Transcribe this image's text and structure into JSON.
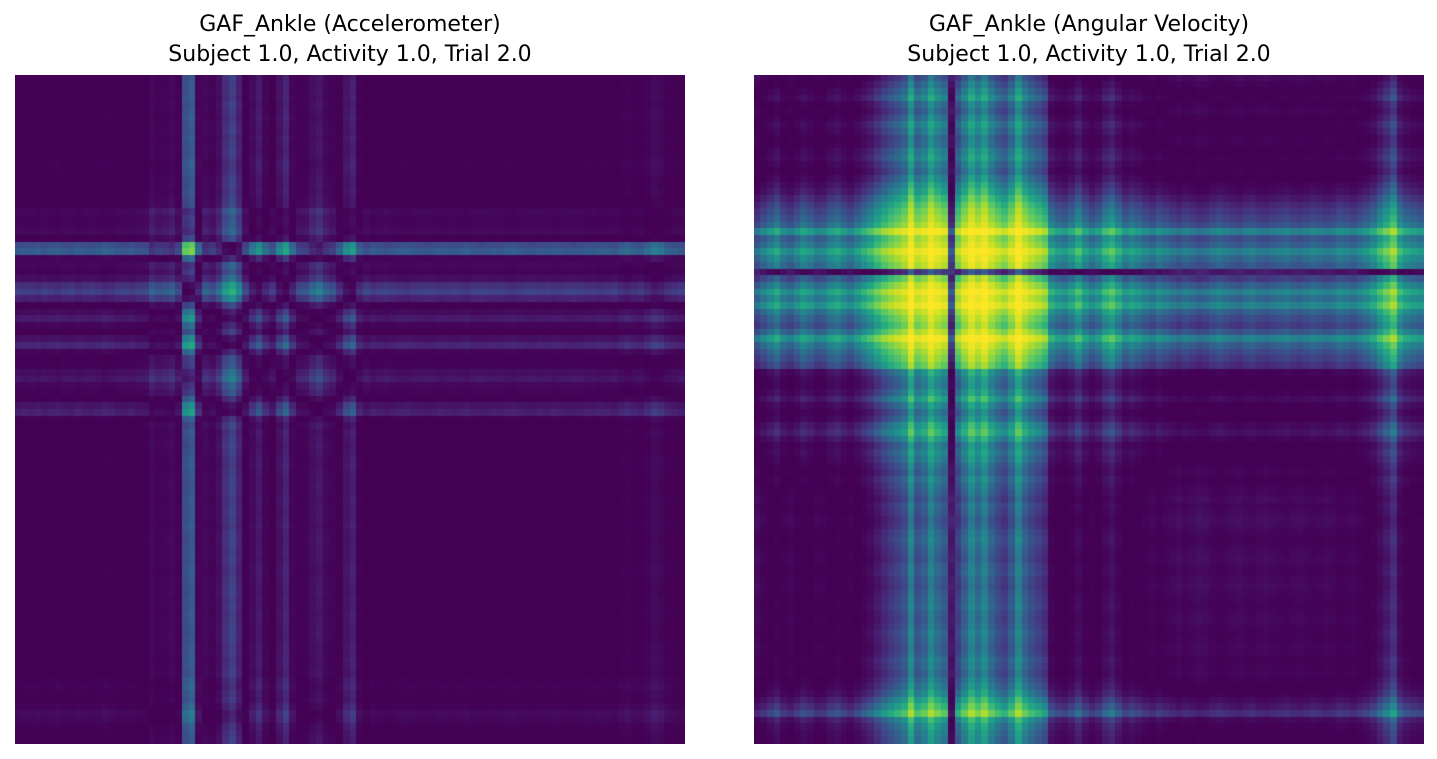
{
  "figure": {
    "panels": [
      {
        "title_line1": "GAF_Ankle (Accelerometer)",
        "title_line2": "Subject 1.0, Activity 1.0, Trial 2.0"
      },
      {
        "title_line1": "GAF_Ankle (Angular Velocity)",
        "title_line2": "Subject 1.0, Activity 1.0, Trial 2.0"
      }
    ]
  },
  "chart_data": [
    {
      "type": "heatmap",
      "title": "GAF_Ankle (Accelerometer)\nSubject 1.0, Activity 1.0, Trial 2.0",
      "colormap": "viridis",
      "axes_visible": false,
      "grid": false,
      "matrix_size": 100,
      "series": [
        {
          "values": [
            0.5,
            0.52,
            0.51,
            0.53,
            0.5,
            0.52,
            0.54,
            0.51,
            0.5,
            0.53,
            0.51,
            0.5,
            0.52,
            0.55,
            0.53,
            0.5,
            0.49,
            0.51,
            0.48,
            0.47,
            0.35,
            0.4,
            0.38,
            0.34,
            0.45,
            0.92,
            0.95,
            0.6,
            0.35,
            0.4,
            0.3,
            0.15,
            0.1,
            0.2,
            0.45,
            0.65,
            0.75,
            0.6,
            0.5,
            0.7,
            0.8,
            0.6,
            0.42,
            0.4,
            0.3,
            0.25,
            0.35,
            0.4,
            0.55,
            0.72,
            0.78,
            0.55,
            0.47,
            0.52,
            0.5,
            0.48,
            0.5,
            0.52,
            0.53,
            0.51,
            0.5,
            0.49,
            0.5,
            0.52,
            0.51,
            0.5,
            0.51,
            0.53,
            0.5,
            0.49,
            0.5,
            0.51,
            0.5,
            0.52,
            0.53,
            0.51,
            0.5,
            0.49,
            0.51,
            0.5,
            0.52,
            0.51,
            0.5,
            0.49,
            0.5,
            0.52,
            0.51,
            0.53,
            0.52,
            0.5,
            0.55,
            0.58,
            0.54,
            0.52,
            0.58,
            0.65,
            0.62,
            0.55,
            0.52,
            0.5
          ]
        }
      ]
    },
    {
      "type": "heatmap",
      "title": "GAF_Ankle (Angular Velocity)\nSubject 1.0, Activity 1.0, Trial 2.0",
      "colormap": "viridis",
      "axes_visible": false,
      "grid": false,
      "matrix_size": 100,
      "series": [
        {
          "values": [
            0.4,
            0.48,
            0.55,
            0.62,
            0.5,
            0.45,
            0.52,
            0.6,
            0.55,
            0.48,
            0.5,
            0.58,
            0.62,
            0.55,
            0.5,
            0.58,
            0.66,
            0.72,
            0.8,
            0.86,
            0.9,
            0.93,
            0.96,
            1.0,
            0.96,
            0.98,
            1.0,
            0.99,
            0.97,
            0.3,
            0.92,
            0.98,
            1.0,
            0.99,
            1.0,
            0.98,
            0.95,
            0.92,
            0.97,
            1.0,
            0.98,
            0.95,
            0.92,
            0.88,
            0.65,
            0.58,
            0.55,
            0.62,
            0.72,
            0.6,
            0.52,
            0.58,
            0.7,
            0.76,
            0.66,
            0.55,
            0.6,
            0.56,
            0.5,
            0.46,
            0.52,
            0.48,
            0.44,
            0.4,
            0.45,
            0.42,
            0.38,
            0.4,
            0.45,
            0.48,
            0.45,
            0.42,
            0.4,
            0.44,
            0.46,
            0.42,
            0.4,
            0.43,
            0.45,
            0.47,
            0.44,
            0.42,
            0.45,
            0.48,
            0.46,
            0.43,
            0.45,
            0.5,
            0.48,
            0.45,
            0.5,
            0.55,
            0.62,
            0.72,
            0.8,
            0.88,
            0.7,
            0.62,
            0.58,
            0.55
          ]
        }
      ]
    }
  ]
}
